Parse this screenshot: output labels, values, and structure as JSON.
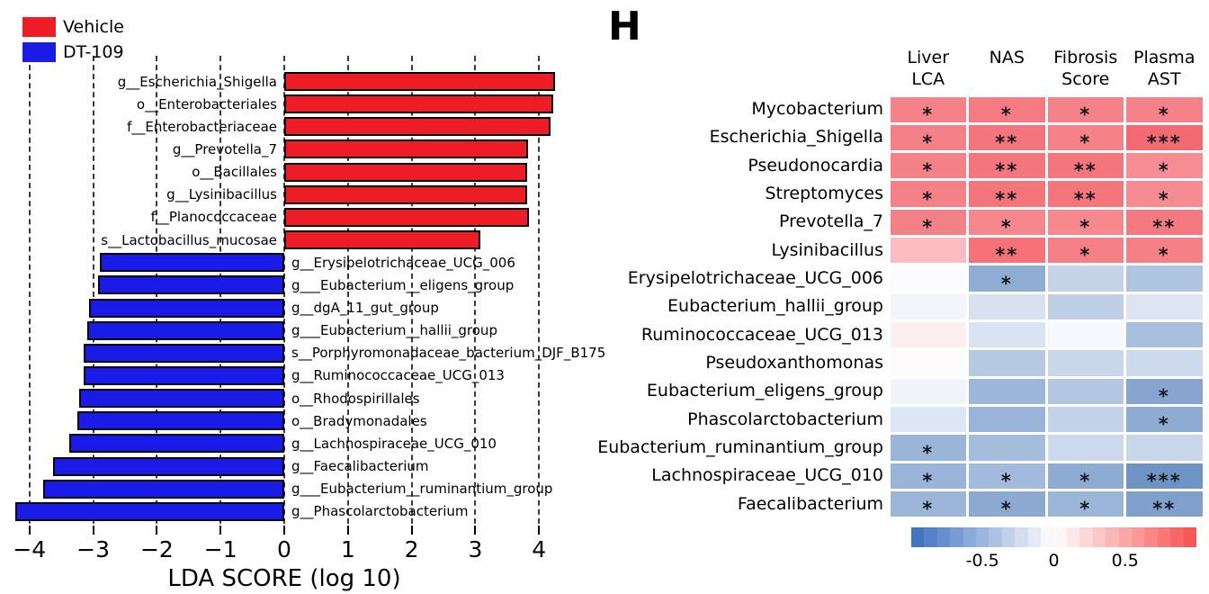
{
  "panel_label": "H",
  "chart_data": [
    {
      "type": "bar",
      "name": "lefse-lda-score-chart",
      "orientation": "horizontal",
      "xlabel": "LDA SCORE (log 10)",
      "xlim": [
        -4.35,
        4.35
      ],
      "x_ticks": [
        -4,
        -3,
        -2,
        -1,
        0,
        1,
        2,
        3,
        4
      ],
      "grid": "dashed-vertical-lines",
      "legend_position": "top-left",
      "series": [
        {
          "name": "Vehicle",
          "color": "#EE1C24"
        },
        {
          "name": "DT-109",
          "color": "#1B1BE8"
        }
      ],
      "bars": [
        {
          "label": "g__Escherichia_Shigella",
          "value": 4.25,
          "group": "Vehicle"
        },
        {
          "label": "o__Enterobacteriales",
          "value": 4.22,
          "group": "Vehicle"
        },
        {
          "label": "f__Enterobacteriaceae",
          "value": 4.18,
          "group": "Vehicle"
        },
        {
          "label": "g__Prevotella_7",
          "value": 3.83,
          "group": "Vehicle"
        },
        {
          "label": "o__Bacillales",
          "value": 3.82,
          "group": "Vehicle"
        },
        {
          "label": "g__Lysinibacillus",
          "value": 3.82,
          "group": "Vehicle"
        },
        {
          "label": "f__Planococcaceae",
          "value": 3.84,
          "group": "Vehicle"
        },
        {
          "label": "s__Lactobacillus_mucosae",
          "value": 3.08,
          "group": "Vehicle"
        },
        {
          "label": "g__Erysipelotrichaceae_UCG_006",
          "value": -2.9,
          "group": "DT-109"
        },
        {
          "label": "g___Eubacterium__eligens_group",
          "value": -2.92,
          "group": "DT-109"
        },
        {
          "label": "g__dgA_11_gut_group",
          "value": -3.07,
          "group": "DT-109"
        },
        {
          "label": "g___Eubacterium__hallii_group",
          "value": -3.09,
          "group": "DT-109"
        },
        {
          "label": "s__Porphyromonadaceae_bacterium_DJF_B175",
          "value": -3.15,
          "group": "DT-109"
        },
        {
          "label": "g__Ruminococcaceae_UCG_013",
          "value": -3.15,
          "group": "DT-109"
        },
        {
          "label": "o__Rhodospirillales",
          "value": -3.22,
          "group": "DT-109"
        },
        {
          "label": "o__Bradymonadales",
          "value": -3.25,
          "group": "DT-109"
        },
        {
          "label": "g__Lachnospiraceae_UCG_010",
          "value": -3.37,
          "group": "DT-109"
        },
        {
          "label": "g__Faecalibacterium",
          "value": -3.63,
          "group": "DT-109"
        },
        {
          "label": "g___Eubacterium__ruminantium_group",
          "value": -3.78,
          "group": "DT-109"
        },
        {
          "label": "g__Phascolarctobacterium",
          "value": -4.22,
          "group": "DT-109"
        }
      ]
    },
    {
      "type": "heatmap",
      "name": "correlation-heatmap",
      "panel_label": "H",
      "columns": [
        {
          "line1": "Liver",
          "line2": "LCA"
        },
        {
          "line1": "NAS",
          "line2": ""
        },
        {
          "line1": "Fibrosis",
          "line2": "Score"
        },
        {
          "line1": "Plasma",
          "line2": "AST"
        }
      ],
      "rows": [
        {
          "label": "Mycobacterium",
          "cells": [
            {
              "value": 0.55,
              "stars": "*",
              "color": "#F58289"
            },
            {
              "value": 0.6,
              "stars": "*",
              "color": "#F57A81"
            },
            {
              "value": 0.55,
              "stars": "*",
              "color": "#F58289"
            },
            {
              "value": 0.55,
              "stars": "*",
              "color": "#F58289"
            }
          ]
        },
        {
          "label": "Escherichia_Shigella",
          "cells": [
            {
              "value": 0.55,
              "stars": "*",
              "color": "#F58188"
            },
            {
              "value": 0.63,
              "stars": "**",
              "color": "#F4747B"
            },
            {
              "value": 0.55,
              "stars": "*",
              "color": "#F58289"
            },
            {
              "value": 0.7,
              "stars": "***",
              "color": "#F36A72"
            }
          ]
        },
        {
          "label": "Pseudonocardia",
          "cells": [
            {
              "value": 0.55,
              "stars": "*",
              "color": "#F58188"
            },
            {
              "value": 0.63,
              "stars": "**",
              "color": "#F4757C"
            },
            {
              "value": 0.63,
              "stars": "**",
              "color": "#F4757C"
            },
            {
              "value": 0.5,
              "stars": "*",
              "color": "#F68D93"
            }
          ]
        },
        {
          "label": "Streptomyces",
          "cells": [
            {
              "value": 0.55,
              "stars": "*",
              "color": "#F58188"
            },
            {
              "value": 0.63,
              "stars": "**",
              "color": "#F4747B"
            },
            {
              "value": 0.63,
              "stars": "**",
              "color": "#F4757C"
            },
            {
              "value": 0.5,
              "stars": "*",
              "color": "#F68C92"
            }
          ]
        },
        {
          "label": "Prevotella_7",
          "cells": [
            {
              "value": 0.55,
              "stars": "*",
              "color": "#F58188"
            },
            {
              "value": 0.5,
              "stars": "*",
              "color": "#F6878D"
            },
            {
              "value": 0.5,
              "stars": "*",
              "color": "#F6888E"
            },
            {
              "value": 0.6,
              "stars": "**",
              "color": "#F47980"
            }
          ]
        },
        {
          "label": "Lysinibacillus",
          "cells": [
            {
              "value": 0.3,
              "stars": "",
              "color": "#FABCC0"
            },
            {
              "value": 0.63,
              "stars": "**",
              "color": "#F47278"
            },
            {
              "value": 0.55,
              "stars": "*",
              "color": "#F58087"
            },
            {
              "value": 0.55,
              "stars": "*",
              "color": "#F58187"
            }
          ]
        },
        {
          "label": "Erysipelotrichaceae_UCG_006",
          "cells": [
            {
              "value": -0.01,
              "stars": "",
              "color": "#FCFCFE"
            },
            {
              "value": -0.55,
              "stars": "*",
              "color": "#8FACD3"
            },
            {
              "value": -0.28,
              "stars": "",
              "color": "#C5D4E9"
            },
            {
              "value": -0.4,
              "stars": "",
              "color": "#AFC4E1"
            }
          ]
        },
        {
          "label": "Eubacterium_hallii_group",
          "cells": [
            {
              "value": -0.05,
              "stars": "",
              "color": "#F3F5FA"
            },
            {
              "value": -0.19,
              "stars": "",
              "color": "#D8E1F0"
            },
            {
              "value": -0.32,
              "stars": "",
              "color": "#BECFE6"
            },
            {
              "value": -0.17,
              "stars": "",
              "color": "#DCE5F1"
            }
          ]
        },
        {
          "label": "Ruminococcaceae_UCG_013",
          "cells": [
            {
              "value": 0.07,
              "stars": "",
              "color": "#FBEFF1"
            },
            {
              "value": -0.18,
              "stars": "",
              "color": "#DAE3F1"
            },
            {
              "value": -0.04,
              "stars": "",
              "color": "#F5F8FC"
            },
            {
              "value": -0.42,
              "stars": "",
              "color": "#A9BFDE"
            }
          ]
        },
        {
          "label": "Pseudoxanthomonas",
          "cells": [
            {
              "value": 0.01,
              "stars": "",
              "color": "#FDFAFB"
            },
            {
              "value": -0.37,
              "stars": "",
              "color": "#B6C9E3"
            },
            {
              "value": -0.26,
              "stars": "",
              "color": "#C9D7EB"
            },
            {
              "value": -0.25,
              "stars": "",
              "color": "#CDD9EC"
            }
          ]
        },
        {
          "label": "Eubacterium_eligens_group",
          "cells": [
            {
              "value": -0.06,
              "stars": "",
              "color": "#F0F4FA"
            },
            {
              "value": -0.49,
              "stars": "",
              "color": "#9DB7DA"
            },
            {
              "value": -0.38,
              "stars": "",
              "color": "#B3C7E2"
            },
            {
              "value": -0.6,
              "stars": "*",
              "color": "#87A5CF"
            }
          ]
        },
        {
          "label": "Phascolarctobacterium",
          "cells": [
            {
              "value": -0.16,
              "stars": "",
              "color": "#DDE6F3"
            },
            {
              "value": -0.51,
              "stars": "",
              "color": "#99B4D8"
            },
            {
              "value": -0.3,
              "stars": "",
              "color": "#C2D2E8"
            },
            {
              "value": -0.56,
              "stars": "*",
              "color": "#8EABD2"
            }
          ]
        },
        {
          "label": "Eubacterium_ruminantium_group",
          "cells": [
            {
              "value": -0.5,
              "stars": "*",
              "color": "#9AB5D8"
            },
            {
              "value": -0.45,
              "stars": "",
              "color": "#A5BDDC"
            },
            {
              "value": -0.25,
              "stars": "",
              "color": "#CCD9EC"
            },
            {
              "value": -0.27,
              "stars": "",
              "color": "#C8D6EA"
            }
          ]
        },
        {
          "label": "Lachnospiraceae_UCG_010",
          "cells": [
            {
              "value": -0.51,
              "stars": "*",
              "color": "#99B4D8"
            },
            {
              "value": -0.46,
              "stars": "*",
              "color": "#A2BADB"
            },
            {
              "value": -0.56,
              "stars": "*",
              "color": "#8EABD2"
            },
            {
              "value": -0.72,
              "stars": "***",
              "color": "#6E94C6"
            }
          ]
        },
        {
          "label": "Faecalibacterium",
          "cells": [
            {
              "value": -0.5,
              "stars": "*",
              "color": "#9CB6D9"
            },
            {
              "value": -0.57,
              "stars": "*",
              "color": "#8BA9D1"
            },
            {
              "value": -0.5,
              "stars": "*",
              "color": "#9CB6D9"
            },
            {
              "value": -0.64,
              "stars": "**",
              "color": "#7FA0CB"
            }
          ]
        }
      ],
      "colorbar": {
        "min": -1,
        "max": 1,
        "tick_values": [
          -0.5,
          0,
          0.5
        ],
        "tick_labels": [
          "-0.5",
          "0",
          "0.5"
        ],
        "negative_color": "#3A6DBE",
        "positive_color": "#F4504F"
      }
    }
  ]
}
